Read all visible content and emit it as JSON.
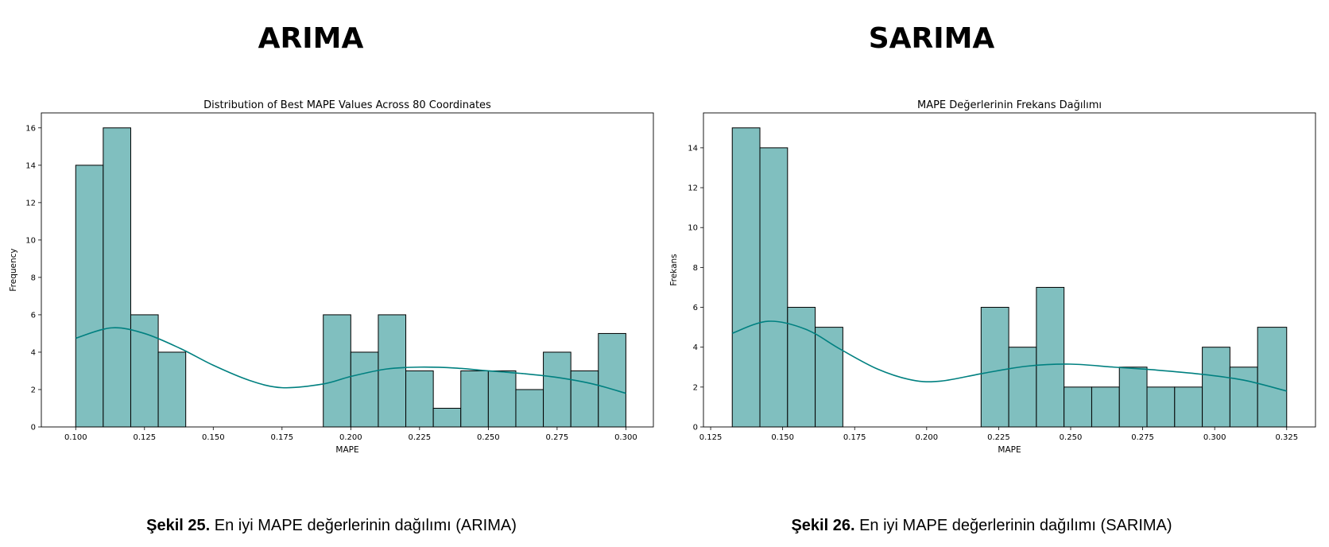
{
  "panels": [
    {
      "heading": "ARIMA",
      "caption_bold": "Şekil 25.",
      "caption_text": " En iyi MAPE değerlerinin dağılımı (ARIMA)"
    },
    {
      "heading": "SARIMA",
      "caption_bold": "Şekil 26.",
      "caption_text": " En iyi MAPE değerlerinin dağılımı (SARIMA)"
    }
  ],
  "chart_data": [
    {
      "type": "bar",
      "title": "Distribution of Best MAPE Values Across 80 Coordinates",
      "xlabel": "MAPE",
      "ylabel": "Frequency",
      "xlim": [
        0.0875,
        0.31
      ],
      "ylim": [
        0,
        16.8
      ],
      "xticks": [
        0.1,
        0.125,
        0.15,
        0.175,
        0.2,
        0.225,
        0.25,
        0.275,
        0.3
      ],
      "xtick_labels": [
        "0.100",
        "0.125",
        "0.150",
        "0.175",
        "0.200",
        "0.225",
        "0.250",
        "0.275",
        "0.300"
      ],
      "yticks": [
        0,
        2,
        4,
        6,
        8,
        10,
        12,
        14,
        16
      ],
      "bin_edges": [
        0.1,
        0.11,
        0.12,
        0.13,
        0.14,
        0.15,
        0.16,
        0.17,
        0.18,
        0.19,
        0.2,
        0.21,
        0.22,
        0.23,
        0.24,
        0.25,
        0.26,
        0.27,
        0.28,
        0.29,
        0.3
      ],
      "values": [
        14,
        16,
        6,
        4,
        0,
        0,
        0,
        0,
        0,
        6,
        4,
        6,
        3,
        1,
        3,
        3,
        2,
        4,
        3,
        5
      ],
      "kde_x": [
        0.1,
        0.113,
        0.125,
        0.138,
        0.15,
        0.163,
        0.175,
        0.19,
        0.2,
        0.213,
        0.225,
        0.238,
        0.25,
        0.263,
        0.275,
        0.288,
        0.3
      ],
      "kde_y": [
        4.75,
        5.3,
        5.0,
        4.2,
        3.3,
        2.5,
        2.1,
        2.3,
        2.7,
        3.1,
        3.2,
        3.15,
        3.0,
        2.85,
        2.65,
        2.3,
        1.8
      ],
      "bar_color": "#80bfbf",
      "edge_color": "#000000",
      "kde_color": "#008080"
    },
    {
      "type": "bar",
      "title": "MAPE Değerlerinin Frekans Dağılımı",
      "xlabel": "MAPE",
      "ylabel": "Frekans",
      "xlim": [
        0.1225,
        0.335
      ],
      "ylim": [
        0,
        15.75
      ],
      "xticks": [
        0.125,
        0.15,
        0.175,
        0.2,
        0.225,
        0.25,
        0.275,
        0.3,
        0.325
      ],
      "xtick_labels": [
        "0.125",
        "0.150",
        "0.175",
        "0.200",
        "0.225",
        "0.250",
        "0.275",
        "0.300",
        "0.325"
      ],
      "yticks": [
        0,
        2,
        4,
        6,
        8,
        10,
        12,
        14
      ],
      "bin_edges": [
        0.1325,
        0.1421,
        0.1517,
        0.1613,
        0.1709,
        0.1805,
        0.1901,
        0.1997,
        0.2093,
        0.2189,
        0.2285,
        0.2381,
        0.2477,
        0.2573,
        0.2669,
        0.2765,
        0.2861,
        0.2957,
        0.3053,
        0.3149,
        0.325
      ],
      "values": [
        15,
        14,
        6,
        5,
        0,
        0,
        0,
        0,
        0,
        6,
        4,
        7,
        2,
        2,
        3,
        2,
        2,
        4,
        3,
        5
      ],
      "kde_x": [
        0.1325,
        0.145,
        0.158,
        0.17,
        0.183,
        0.195,
        0.205,
        0.22,
        0.235,
        0.25,
        0.265,
        0.28,
        0.295,
        0.31,
        0.325
      ],
      "kde_y": [
        4.7,
        5.3,
        4.9,
        3.9,
        2.9,
        2.35,
        2.3,
        2.7,
        3.05,
        3.15,
        3.0,
        2.85,
        2.65,
        2.35,
        1.8
      ],
      "bar_color": "#80bfbf",
      "edge_color": "#000000",
      "kde_color": "#008080"
    }
  ]
}
